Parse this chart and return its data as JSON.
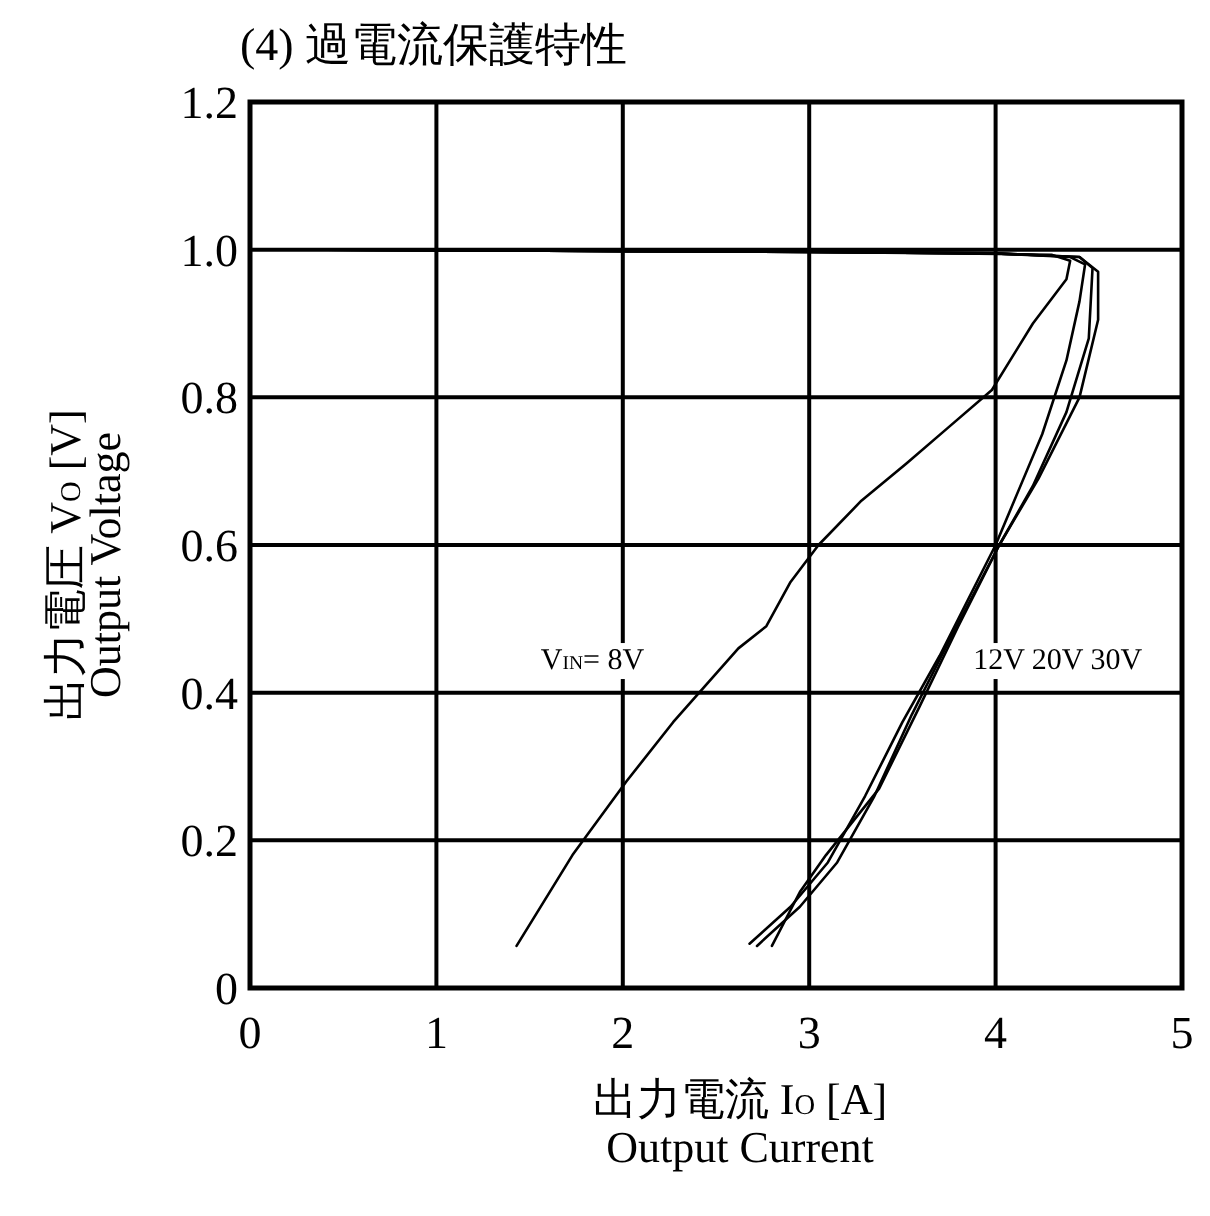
{
  "chart_data": {
    "type": "line",
    "title": "(4) 過電流保護特性",
    "xlabel": "出力電流 I$_{O}$ [A]\nOutput Current",
    "ylabel": "出力電圧 V$_{O}$ [V]\nOutput Voltage",
    "xlim": [
      0,
      5
    ],
    "ylim": [
      0,
      1.2
    ],
    "xticks": [
      0,
      1,
      2,
      3,
      4,
      5
    ],
    "yticks": [
      0,
      0.2,
      0.4,
      0.6,
      {
        "value": 1,
        "label": "1.0"
      },
      0.8,
      1.2
    ],
    "grid": true,
    "series": [
      {
        "color": "#000000",
        "x": [
          0.42,
          2.0,
          3.0,
          3.8,
          4.3,
          4.4,
          4.38,
          4.2,
          3.98,
          3.75,
          3.52,
          3.28,
          3.05,
          2.9,
          2.77,
          2.62,
          2.48,
          2.27,
          2.02,
          1.73,
          1.43
        ],
        "values": [
          1.0,
          0.998,
          0.997,
          0.995,
          0.993,
          0.985,
          0.96,
          0.9,
          0.81,
          0.76,
          0.71,
          0.66,
          0.6,
          0.55,
          0.49,
          0.46,
          0.42,
          0.36,
          0.28,
          0.18,
          0.057
        ]
      },
      {
        "color": "#000000",
        "x": [
          0.42,
          2.0,
          3.0,
          4.0,
          4.4,
          4.48,
          4.45,
          4.38,
          4.25,
          4.0,
          3.7,
          3.5,
          3.3,
          3.1,
          2.9,
          2.68
        ],
        "values": [
          1.0,
          0.998,
          0.997,
          0.995,
          0.99,
          0.98,
          0.93,
          0.85,
          0.75,
          0.6,
          0.45,
          0.36,
          0.26,
          0.17,
          0.11,
          0.06
        ]
      },
      {
        "color": "#000000",
        "x": [
          0.42,
          2.0,
          3.0,
          4.0,
          4.45,
          4.52,
          4.5,
          4.38,
          4.2,
          4.02,
          3.75,
          3.55,
          3.35,
          3.15,
          2.95,
          2.72
        ],
        "values": [
          1.0,
          0.998,
          0.997,
          0.995,
          0.99,
          0.975,
          0.88,
          0.78,
          0.68,
          0.6,
          0.47,
          0.37,
          0.26,
          0.17,
          0.11,
          0.057
        ]
      },
      {
        "color": "#000000",
        "x": [
          0.42,
          2.0,
          3.0,
          4.0,
          4.45,
          4.55,
          4.55,
          4.45,
          4.23,
          4.02,
          3.8,
          3.59,
          3.375,
          3.09,
          2.95,
          2.8
        ],
        "values": [
          1.0,
          0.998,
          0.997,
          0.995,
          0.99,
          0.97,
          0.905,
          0.8,
          0.69,
          0.6,
          0.49,
          0.38,
          0.27,
          0.18,
          0.13,
          0.057
        ]
      }
    ],
    "annotations": [
      "V$_{IN}$= 8V",
      "12V 20V 30V"
    ]
  }
}
